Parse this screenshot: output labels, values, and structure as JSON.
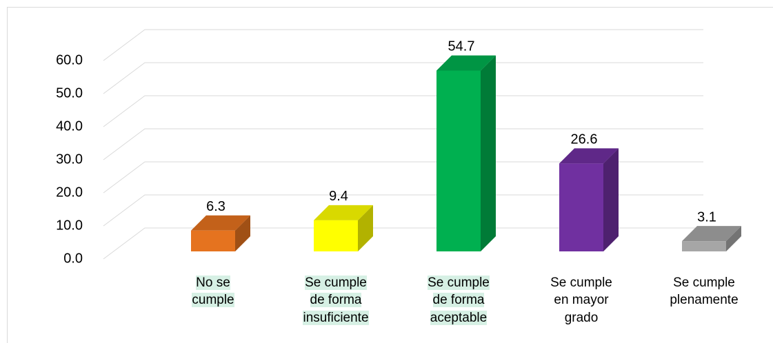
{
  "chart_data": {
    "type": "bar3d",
    "categories": [
      "No se cumple",
      "Se cumple de forma insuficiente",
      "Se cumple de forma aceptable",
      "Se cumple en mayor grado",
      "Se cumple plenamente"
    ],
    "series": [
      {
        "values": [
          6.3,
          9.4,
          54.7,
          26.6,
          3.1
        ],
        "colors": [
          "#e5731f",
          "#ffff00",
          "#00b050",
          "#7030a0",
          "#a6a6a6"
        ]
      }
    ],
    "ylim": [
      0,
      60
    ],
    "yticks": [
      {
        "value": 0,
        "label": "0.0"
      },
      {
        "value": 10,
        "label": "10.0"
      },
      {
        "value": 20,
        "label": "20.0"
      },
      {
        "value": 30,
        "label": "30.0"
      },
      {
        "value": 40,
        "label": "40.0"
      },
      {
        "value": 50,
        "label": "50.0"
      },
      {
        "value": 60,
        "label": "60.0"
      }
    ],
    "grid": true
  }
}
